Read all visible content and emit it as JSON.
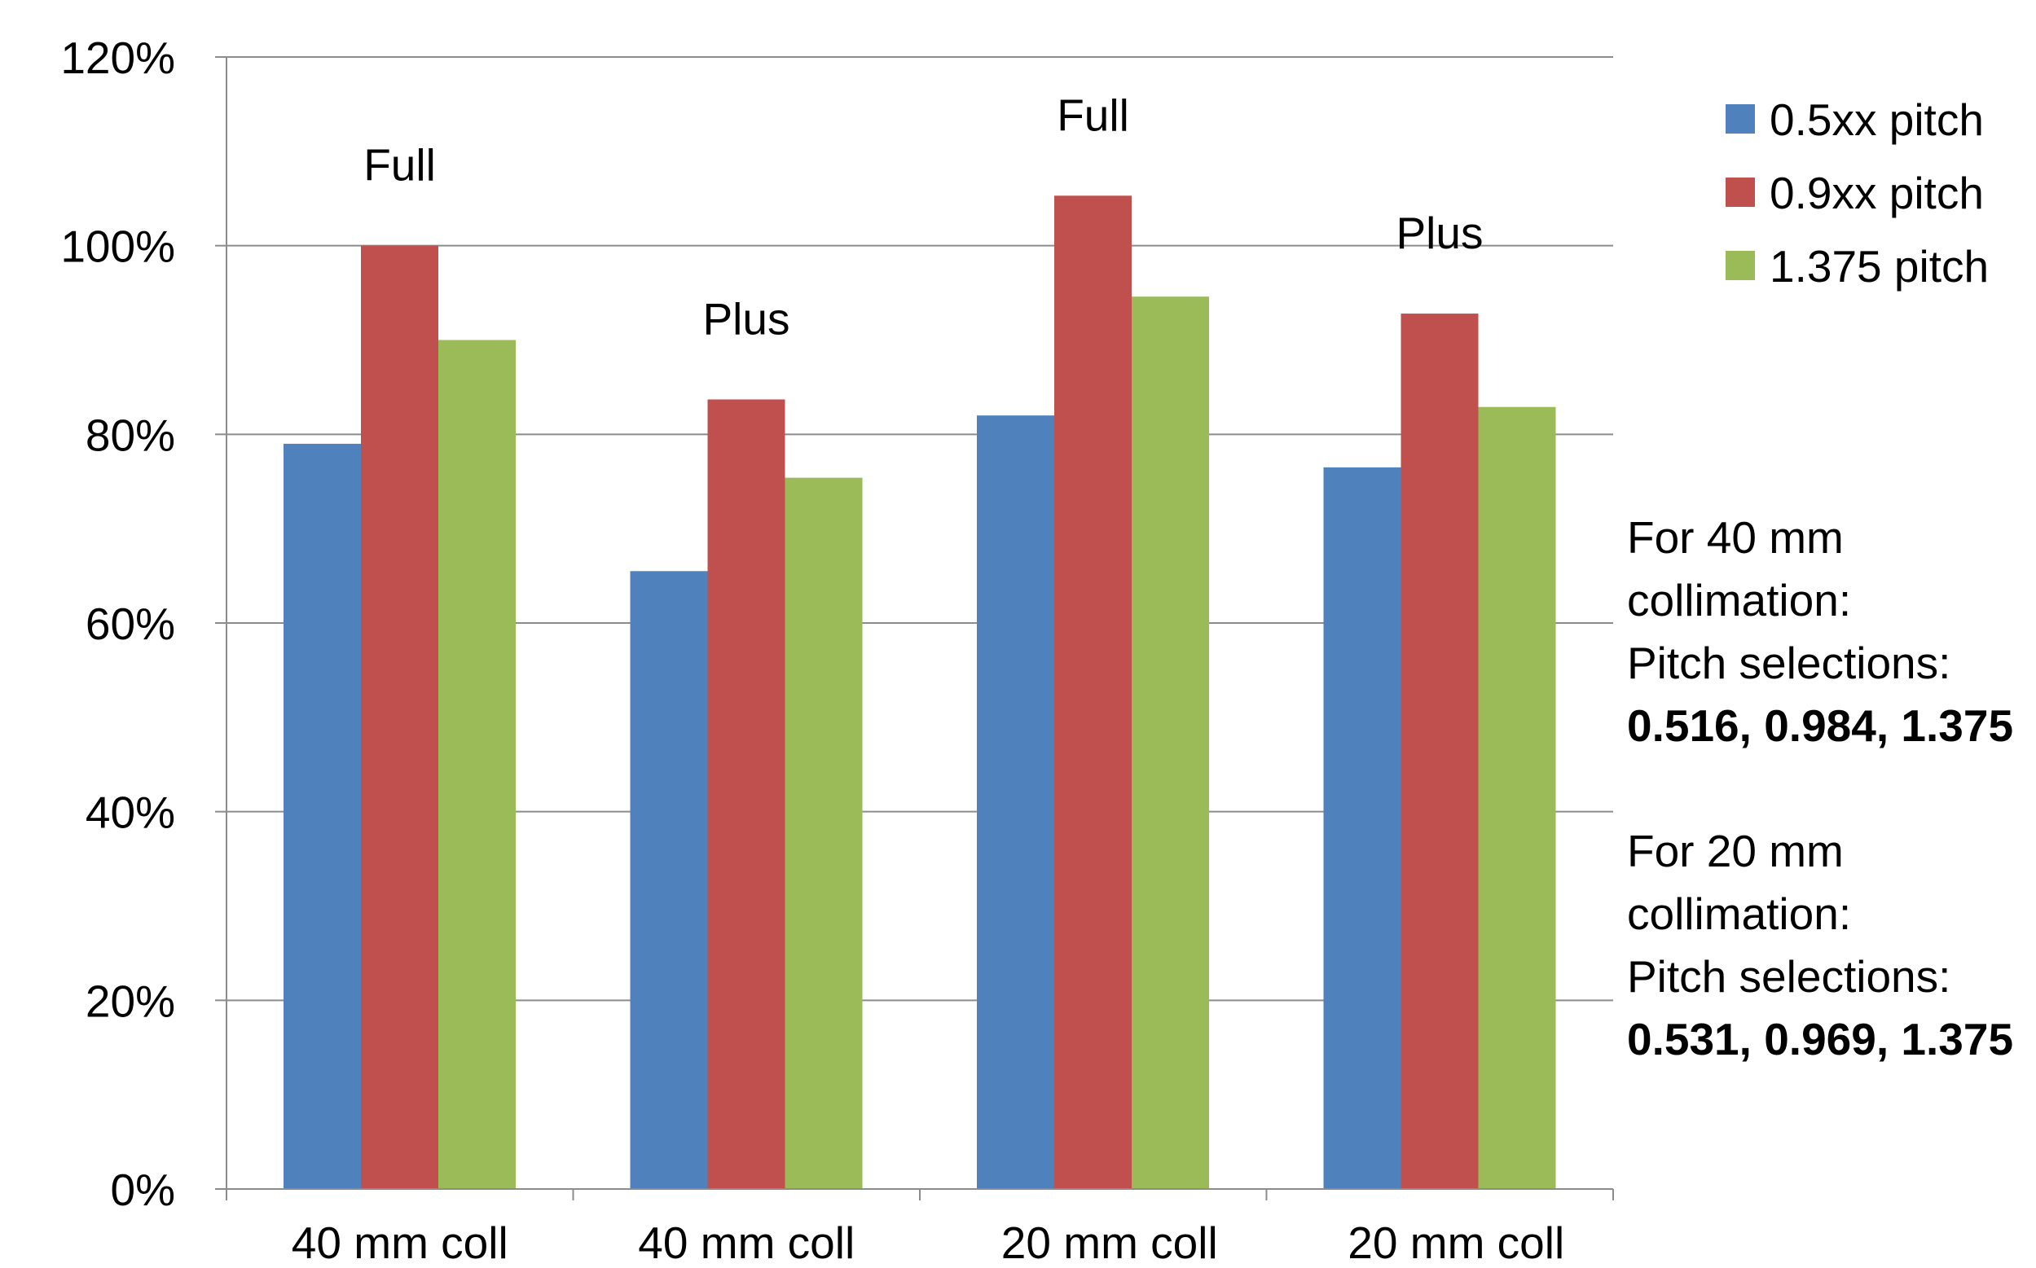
{
  "chart_data": {
    "type": "bar",
    "categories": [
      "40 mm coll",
      "40 mm coll",
      "20 mm coll",
      "20 mm coll"
    ],
    "category_annotations": [
      "Full",
      "Plus",
      "Full",
      "Plus"
    ],
    "series": [
      {
        "name": "0.5xx pitch",
        "color": "#4F81BD",
        "values": [
          0.79,
          0.655,
          0.82,
          0.765
        ]
      },
      {
        "name": "0.9xx pitch",
        "color": "#C0504D",
        "values": [
          1.0,
          0.837,
          1.053,
          0.928
        ]
      },
      {
        "name": "1.375 pitch",
        "color": "#9BBB59",
        "values": [
          0.9,
          0.754,
          0.946,
          0.829
        ]
      }
    ],
    "ylim": [
      0,
      1.2
    ],
    "yticks": [
      0,
      0.2,
      0.4,
      0.6,
      0.8,
      1.0,
      1.2
    ],
    "ytick_labels": [
      "0%",
      "20%",
      "40%",
      "60%",
      "80%",
      "100%",
      "120%"
    ],
    "xlabel": "",
    "ylabel": "",
    "title": "",
    "grid": true,
    "legend_position": "top-right"
  },
  "notes": [
    {
      "lines": [
        "For 40 mm",
        "collimation:",
        "Pitch selections:"
      ],
      "bold": "0.516, 0.984, 1.375"
    },
    {
      "lines": [
        "For 20 mm",
        "collimation:",
        "Pitch selections:"
      ],
      "bold": "0.531, 0.969, 1.375"
    }
  ]
}
